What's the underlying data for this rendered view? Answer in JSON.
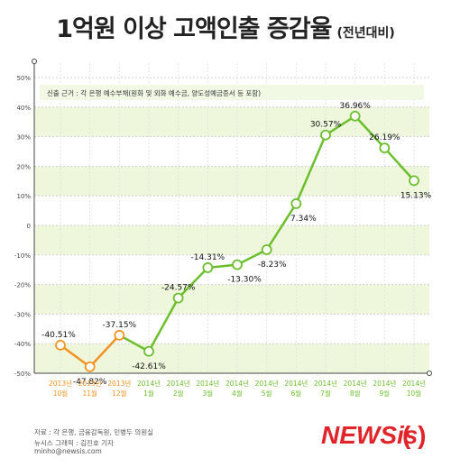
{
  "title": "1억원 이상 고액인출 증감율",
  "subtitle": "(전년대비)",
  "note": "신출 근거 : 각 은행 예수부채(원화 및 외화 예수금, 양도성예금증서 등 포함)",
  "footer": {
    "source": "자료 : 각 은행, 금융감독원, 민병두 의원실",
    "credit": "뉴시스 그래픽 : 김진호 기자",
    "email": "minho@newsis.com"
  },
  "logo_text": "NEWSis",
  "colors": {
    "orange": "#f39221",
    "green": "#6cbf2c",
    "band": "#eef6dc",
    "grid": "#cfcfcf"
  },
  "chart_data": {
    "type": "line",
    "title": "1억원 이상 고액인출 증감율",
    "ylim": [
      -50,
      50
    ],
    "y_ticks": [
      "50%",
      "40%",
      "30%",
      "20%",
      "10%",
      "0",
      "-10%",
      "-20%",
      "-30%",
      "-40%",
      "-50%"
    ],
    "y_tick_values": [
      50,
      40,
      30,
      20,
      10,
      0,
      -10,
      -20,
      -30,
      -40,
      -50
    ],
    "categories": [
      [
        "2013년",
        "10월"
      ],
      [
        "2013년",
        "11월"
      ],
      [
        "2013년",
        "12월"
      ],
      [
        "2014년",
        "1월"
      ],
      [
        "2014년",
        "2월"
      ],
      [
        "2014년",
        "3월"
      ],
      [
        "2014년",
        "4월"
      ],
      [
        "2014년",
        "5월"
      ],
      [
        "2014년",
        "6월"
      ],
      [
        "2014년",
        "7월"
      ],
      [
        "2014년",
        "8월"
      ],
      [
        "2014년",
        "9월"
      ],
      [
        "2014년",
        "10월"
      ]
    ],
    "values": [
      -40.51,
      -47.82,
      -37.15,
      -42.61,
      -24.57,
      -14.31,
      -13.3,
      -8.23,
      7.34,
      30.57,
      36.96,
      26.19,
      15.13
    ],
    "labels": [
      "-40.51%",
      "-47.82%",
      "-37.15%",
      "-42.61%",
      "-24.57%",
      "-14.31%",
      "-13.30%",
      "-8.23%",
      "7.34%",
      "30.57%",
      "36.96%",
      "26.19%",
      "15.13%"
    ],
    "series_colors": [
      "orange",
      "orange",
      "orange",
      "green",
      "green",
      "green",
      "green",
      "green",
      "green",
      "green",
      "green",
      "green",
      "green"
    ]
  }
}
